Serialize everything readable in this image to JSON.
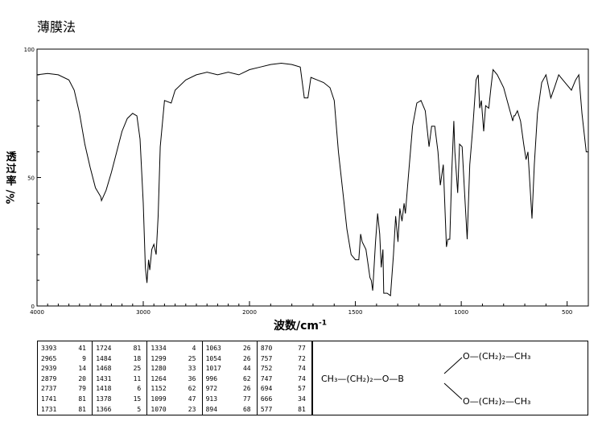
{
  "title": "薄膜法",
  "chart_data": {
    "type": "line",
    "xlabel": "波数/cm",
    "xlabel_unit_exp": "-1",
    "ylabel": "透过率",
    "ylabel_unit": "%/",
    "x_ticks": [
      "4000",
      "3000",
      "2000",
      "1500",
      "1000",
      "500"
    ],
    "y_ticks": [
      "100",
      "50",
      "0"
    ],
    "xlim_note": "x axis reversed, nonlinear (4000–2000 and 2000–400 scaled differently)",
    "ylim": [
      0,
      100
    ],
    "series": [
      {
        "points": [
          [
            4000,
            90
          ],
          [
            3900,
            90.5
          ],
          [
            3800,
            90
          ],
          [
            3700,
            88
          ],
          [
            3650,
            84
          ],
          [
            3600,
            75
          ],
          [
            3550,
            63
          ],
          [
            3500,
            54
          ],
          [
            3450,
            46
          ],
          [
            3400,
            42.5
          ],
          [
            3393,
            41
          ],
          [
            3350,
            45
          ],
          [
            3300,
            52
          ],
          [
            3250,
            60
          ],
          [
            3200,
            68
          ],
          [
            3150,
            73
          ],
          [
            3100,
            75
          ],
          [
            3060,
            74
          ],
          [
            3030,
            65
          ],
          [
            3000,
            40
          ],
          [
            2980,
            15
          ],
          [
            2965,
            9
          ],
          [
            2950,
            18
          ],
          [
            2939,
            14
          ],
          [
            2920,
            22
          ],
          [
            2900,
            24
          ],
          [
            2879,
            20
          ],
          [
            2860,
            35
          ],
          [
            2840,
            62
          ],
          [
            2800,
            80
          ],
          [
            2737,
            79
          ],
          [
            2700,
            84
          ],
          [
            2600,
            88
          ],
          [
            2500,
            90
          ],
          [
            2400,
            91
          ],
          [
            2300,
            90
          ],
          [
            2200,
            91
          ],
          [
            2100,
            90
          ],
          [
            2000,
            92
          ],
          [
            1950,
            93
          ],
          [
            1900,
            94
          ],
          [
            1850,
            94.5
          ],
          [
            1800,
            94
          ],
          [
            1760,
            93
          ],
          [
            1741,
            81
          ],
          [
            1731,
            81
          ],
          [
            1724,
            81
          ],
          [
            1710,
            89
          ],
          [
            1680,
            88
          ],
          [
            1650,
            87
          ],
          [
            1620,
            85
          ],
          [
            1600,
            80
          ],
          [
            1580,
            60
          ],
          [
            1560,
            45
          ],
          [
            1540,
            30
          ],
          [
            1520,
            20
          ],
          [
            1500,
            18
          ],
          [
            1484,
            18
          ],
          [
            1475,
            28
          ],
          [
            1468,
            25
          ],
          [
            1450,
            22
          ],
          [
            1431,
            11
          ],
          [
            1425,
            10
          ],
          [
            1418,
            6
          ],
          [
            1405,
            25
          ],
          [
            1395,
            36
          ],
          [
            1385,
            28
          ],
          [
            1378,
            15
          ],
          [
            1370,
            22
          ],
          [
            1366,
            5
          ],
          [
            1350,
            5
          ],
          [
            1334,
            4
          ],
          [
            1320,
            20
          ],
          [
            1310,
            35
          ],
          [
            1299,
            25
          ],
          [
            1290,
            38
          ],
          [
            1280,
            33
          ],
          [
            1270,
            40
          ],
          [
            1264,
            36
          ],
          [
            1250,
            50
          ],
          [
            1230,
            70
          ],
          [
            1210,
            79
          ],
          [
            1190,
            80
          ],
          [
            1170,
            76
          ],
          [
            1152,
            62
          ],
          [
            1140,
            70
          ],
          [
            1125,
            70
          ],
          [
            1110,
            60
          ],
          [
            1099,
            47
          ],
          [
            1085,
            55
          ],
          [
            1070,
            23
          ],
          [
            1063,
            26
          ],
          [
            1054,
            26
          ],
          [
            1045,
            52
          ],
          [
            1035,
            72
          ],
          [
            1030,
            60
          ],
          [
            1017,
            44
          ],
          [
            1008,
            63
          ],
          [
            996,
            62
          ],
          [
            985,
            45
          ],
          [
            972,
            26
          ],
          [
            960,
            55
          ],
          [
            945,
            70
          ],
          [
            930,
            88
          ],
          [
            920,
            90
          ],
          [
            913,
            77
          ],
          [
            905,
            80
          ],
          [
            894,
            68
          ],
          [
            885,
            78
          ],
          [
            870,
            77
          ],
          [
            860,
            85
          ],
          [
            850,
            92
          ],
          [
            830,
            90
          ],
          [
            800,
            85
          ],
          [
            780,
            79
          ],
          [
            757,
            72
          ],
          [
            752,
            74
          ],
          [
            747,
            74
          ],
          [
            735,
            76
          ],
          [
            720,
            72
          ],
          [
            705,
            63
          ],
          [
            694,
            57
          ],
          [
            685,
            60
          ],
          [
            666,
            34
          ],
          [
            655,
            55
          ],
          [
            640,
            75
          ],
          [
            620,
            87
          ],
          [
            600,
            90
          ],
          [
            577,
            81
          ],
          [
            560,
            85
          ],
          [
            540,
            90
          ],
          [
            520,
            88
          ],
          [
            500,
            86
          ],
          [
            480,
            84
          ],
          [
            460,
            88
          ],
          [
            445,
            90
          ],
          [
            430,
            75
          ],
          [
            410,
            60
          ],
          [
            400,
            60
          ]
        ]
      }
    ],
    "peak_table": [
      [
        [
          "3393",
          "41"
        ],
        [
          "2965",
          "9"
        ],
        [
          "2939",
          "14"
        ],
        [
          "2879",
          "20"
        ],
        [
          "2737",
          "79"
        ],
        [
          "1741",
          "81"
        ],
        [
          "1731",
          "81"
        ]
      ],
      [
        [
          "1724",
          "81"
        ],
        [
          "1484",
          "18"
        ],
        [
          "1468",
          "25"
        ],
        [
          "1431",
          "11"
        ],
        [
          "1418",
          "6"
        ],
        [
          "1378",
          "15"
        ],
        [
          "1366",
          "5"
        ]
      ],
      [
        [
          "1334",
          "4"
        ],
        [
          "1299",
          "25"
        ],
        [
          "1280",
          "33"
        ],
        [
          "1264",
          "36"
        ],
        [
          "1152",
          "62"
        ],
        [
          "1099",
          "47"
        ],
        [
          "1070",
          "23"
        ]
      ],
      [
        [
          "1063",
          "26"
        ],
        [
          "1054",
          "26"
        ],
        [
          "1017",
          "44"
        ],
        [
          "996",
          "62"
        ],
        [
          "972",
          "26"
        ],
        [
          "913",
          "77"
        ],
        [
          "894",
          "68"
        ]
      ],
      [
        [
          "870",
          "77"
        ],
        [
          "757",
          "72"
        ],
        [
          "752",
          "74"
        ],
        [
          "747",
          "74"
        ],
        [
          "694",
          "57"
        ],
        [
          "666",
          "34"
        ],
        [
          "577",
          "81"
        ]
      ]
    ]
  },
  "structure": {
    "left": "CH₃—(CH₂)₂—O—B",
    "upper": "O—(CH₂)₂—CH₃",
    "lower": "O—(CH₂)₂—CH₃"
  }
}
